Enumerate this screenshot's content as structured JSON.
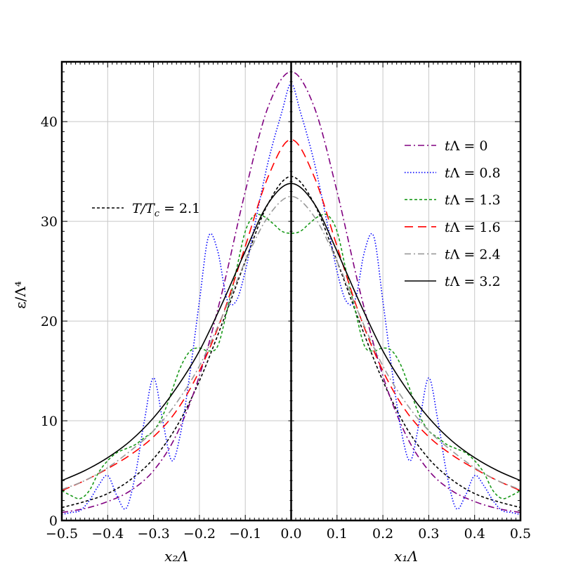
{
  "chart_data": {
    "type": "line",
    "xlabel_left": "x₂Λ",
    "xlabel_right": "x₁Λ",
    "ylabel": "ε/Λ⁴",
    "xlim": [
      -0.5,
      0.5
    ],
    "ylim": [
      0,
      46
    ],
    "x_ticks": [
      "−0.5",
      "−0.4",
      "−0.3",
      "−0.2",
      "−0.1",
      "0.0",
      "0.1",
      "0.2",
      "0.3",
      "0.4",
      "0.5"
    ],
    "y_ticks": [
      "0",
      "10",
      "20",
      "30",
      "40"
    ],
    "grid": true,
    "legend_position": "right",
    "reference": {
      "name": "T/T_c = 2.1",
      "label": "T/T",
      "label_sub": "c",
      "label_value": "= 2.1",
      "color": "#000000",
      "dash": "dashed-short",
      "x": [
        0,
        0.05,
        0.1,
        0.15,
        0.2,
        0.25,
        0.3,
        0.35,
        0.4,
        0.45,
        0.5
      ],
      "y": [
        34.5,
        31.8,
        26.0,
        19.8,
        14.0,
        9.4,
        6.2,
        4.1,
        2.7,
        1.9,
        1.3
      ]
    },
    "series": [
      {
        "name": "tΛ = 0",
        "label_prefix": "t",
        "label_value": "Λ = 0",
        "color": "#800080",
        "dash": "dashdot",
        "x": [
          0,
          0.05,
          0.1,
          0.15,
          0.2,
          0.25,
          0.3,
          0.35,
          0.4,
          0.45,
          0.5
        ],
        "y": [
          45.0,
          41.5,
          33.0,
          23.0,
          14.5,
          8.6,
          5.0,
          3.0,
          1.9,
          1.2,
          0.8
        ]
      },
      {
        "name": "tΛ = 0.8",
        "label_prefix": "t",
        "label_value": "Λ = 0.8",
        "color": "#0000ff",
        "dash": "dotted",
        "x": [
          0,
          0.02,
          0.05,
          0.08,
          0.1,
          0.12,
          0.14,
          0.16,
          0.18,
          0.2,
          0.22,
          0.24,
          0.26,
          0.28,
          0.3,
          0.32,
          0.34,
          0.36,
          0.38,
          0.4,
          0.42,
          0.44,
          0.46,
          0.48,
          0.5
        ],
        "y": [
          43.8,
          41.0,
          36.0,
          29.5,
          25.0,
          22.0,
          22.2,
          27.0,
          28.5,
          22.0,
          15.0,
          9.0,
          6.0,
          10.0,
          14.3,
          10.0,
          4.5,
          1.2,
          2.5,
          4.5,
          3.5,
          2.0,
          1.0,
          0.8,
          0.6
        ]
      },
      {
        "name": "tΛ = 1.3",
        "label_prefix": "t",
        "label_value": "Λ = 1.3",
        "color": "#1a9a1a",
        "dash": "dashed-short",
        "x": [
          0,
          0.02,
          0.04,
          0.06,
          0.08,
          0.1,
          0.12,
          0.14,
          0.16,
          0.18,
          0.2,
          0.22,
          0.24,
          0.26,
          0.28,
          0.3,
          0.32,
          0.34,
          0.36,
          0.38,
          0.4,
          0.42,
          0.44,
          0.46,
          0.48,
          0.5
        ],
        "y": [
          28.8,
          29.0,
          29.8,
          30.5,
          30.6,
          29.0,
          25.0,
          21.0,
          17.5,
          17.0,
          17.3,
          17.0,
          15.5,
          13.0,
          10.5,
          9.0,
          8.3,
          7.6,
          7.2,
          6.8,
          6.0,
          4.8,
          3.0,
          2.2,
          2.5,
          3.0
        ]
      },
      {
        "name": "tΛ = 1.6",
        "label_prefix": "t",
        "label_value": "Λ = 1.6",
        "color": "#ff0000",
        "dash": "dashed-long",
        "x": [
          0,
          0.05,
          0.1,
          0.15,
          0.2,
          0.25,
          0.3,
          0.35,
          0.4,
          0.45,
          0.5
        ],
        "y": [
          38.2,
          34.5,
          27.5,
          20.5,
          15.0,
          11.0,
          8.4,
          6.6,
          5.2,
          4.0,
          3.0
        ]
      },
      {
        "name": "tΛ = 2.4",
        "label_prefix": "t",
        "label_value": "Λ = 2.4",
        "color": "#999999",
        "dash": "dashdot",
        "x": [
          0,
          0.05,
          0.1,
          0.15,
          0.2,
          0.25,
          0.3,
          0.35,
          0.4,
          0.45,
          0.5
        ],
        "y": [
          32.5,
          30.5,
          26.0,
          20.5,
          15.5,
          11.8,
          9.0,
          7.0,
          5.3,
          4.0,
          3.1
        ]
      },
      {
        "name": "tΛ = 3.2",
        "label_prefix": "t",
        "label_value": "Λ = 3.2",
        "color": "#000000",
        "dash": "solid",
        "x": [
          0,
          0.05,
          0.1,
          0.15,
          0.2,
          0.25,
          0.3,
          0.35,
          0.4,
          0.45,
          0.5
        ],
        "y": [
          33.8,
          31.8,
          27.0,
          21.8,
          17.0,
          13.3,
          10.3,
          8.0,
          6.3,
          5.0,
          4.0
        ]
      }
    ]
  }
}
